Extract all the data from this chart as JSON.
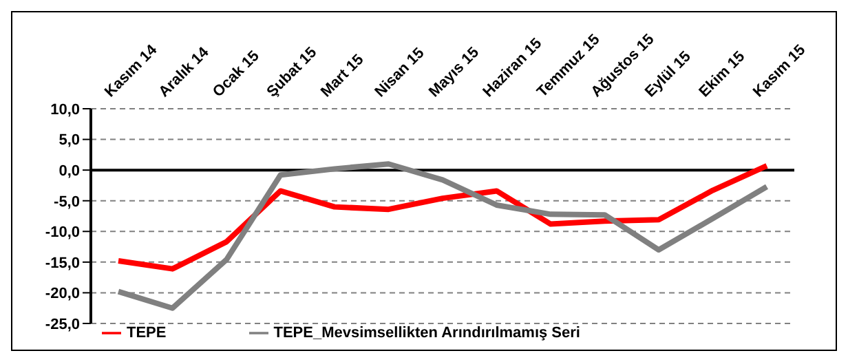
{
  "chart_data": {
    "type": "line",
    "categories": [
      "Kasım 14",
      "Aralık 14",
      "Ocak 15",
      "Şubat 15",
      "Mart 15",
      "Nisan 15",
      "Mayıs 15",
      "Haziran 15",
      "Temmuz 15",
      "Ağustos 15",
      "Eylül 15",
      "Ekim 15",
      "Kasım 15"
    ],
    "series": [
      {
        "name": "TEPE",
        "color": "#ff0000",
        "values": [
          -14.8,
          -16.1,
          -11.7,
          -3.4,
          -6.0,
          -6.4,
          -4.6,
          -3.4,
          -8.8,
          -8.3,
          -8.1,
          -3.3,
          0.7
        ]
      },
      {
        "name": "TEPE_Mevsimsellikten  Arındırılmamış Seri",
        "color": "#808080",
        "values": [
          -19.8,
          -22.5,
          -14.6,
          -0.8,
          0.2,
          1.0,
          -1.6,
          -5.7,
          -7.2,
          -7.3,
          -13.0,
          -7.9,
          -2.7
        ]
      }
    ],
    "ylim": [
      -25,
      10
    ],
    "yticks": [
      {
        "value": -25,
        "label": "-25,0"
      },
      {
        "value": -20,
        "label": "-20,0"
      },
      {
        "value": -15,
        "label": "-15,0"
      },
      {
        "value": -10,
        "label": "-10,0"
      },
      {
        "value": -5,
        "label": "-5,0"
      },
      {
        "value": 0,
        "label": "0,0"
      },
      {
        "value": 5,
        "label": "5,0"
      },
      {
        "value": 10,
        "label": "10,0"
      }
    ],
    "grid": "y",
    "legend": "bottom",
    "marker": "none",
    "line_style": "solid"
  }
}
